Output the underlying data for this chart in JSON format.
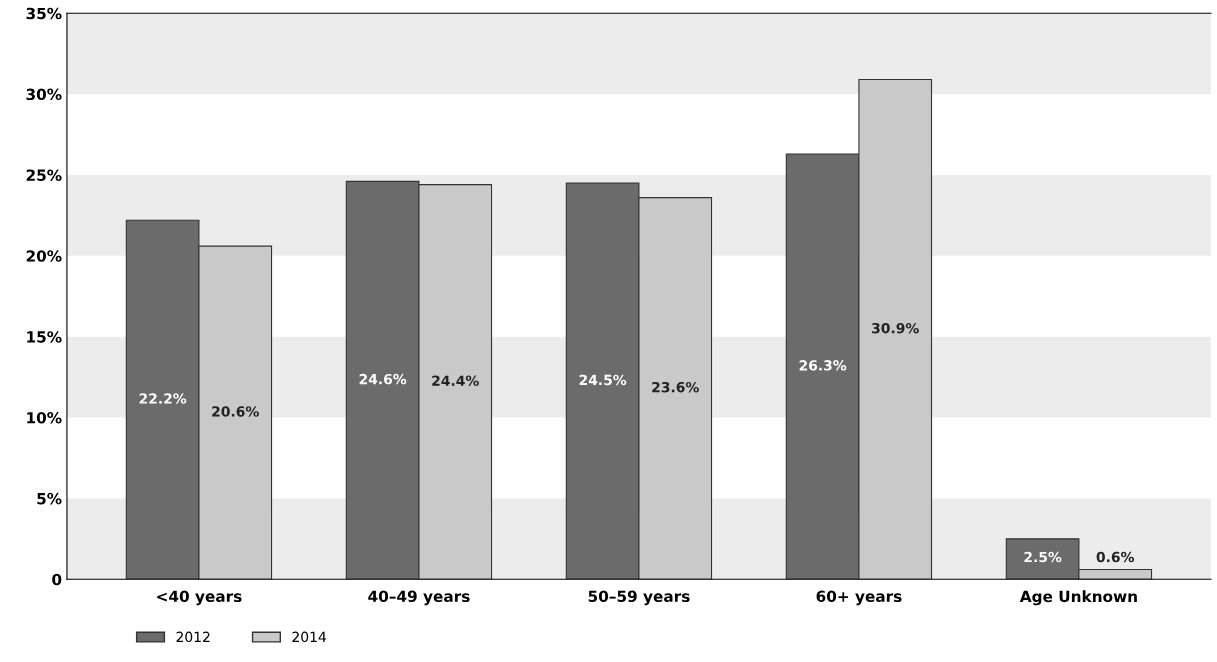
{
  "chart_data": {
    "type": "bar",
    "categories": [
      "<40 years",
      "40–49 years",
      "50–59 years",
      "60+ years",
      "Age Unknown"
    ],
    "series": [
      {
        "name": "2012",
        "color": "#6b6b6b",
        "values": [
          22.2,
          24.6,
          24.5,
          26.3,
          2.5
        ]
      },
      {
        "name": "2014",
        "color": "#c9c9c9",
        "values": [
          20.6,
          24.4,
          23.6,
          30.9,
          0.6
        ]
      }
    ],
    "value_labels": [
      [
        "22.2%",
        "24.6%",
        "24.5%",
        "26.3%",
        "2.5%"
      ],
      [
        "20.6%",
        "24.4%",
        "23.6%",
        "30.9%",
        "0.6%"
      ]
    ],
    "ylim": [
      0,
      35
    ],
    "yticks": [
      {
        "value": 0,
        "label": "0"
      },
      {
        "value": 5,
        "label": "5%"
      },
      {
        "value": 10,
        "label": "10%"
      },
      {
        "value": 15,
        "label": "15%"
      },
      {
        "value": 20,
        "label": "20%"
      },
      {
        "value": 25,
        "label": "25%"
      },
      {
        "value": 30,
        "label": "30%"
      },
      {
        "value": 35,
        "label": "35%"
      }
    ],
    "bands": [
      {
        "axis": "y",
        "from": 0,
        "to": 5,
        "color": "#ececec"
      },
      {
        "axis": "y",
        "from": 10,
        "to": 15,
        "color": "#ececec"
      },
      {
        "axis": "y",
        "from": 20,
        "to": 25,
        "color": "#ececec"
      },
      {
        "axis": "y",
        "from": 30,
        "to": 35,
        "color": "#ececec"
      }
    ],
    "grid": false,
    "legend": "bottom left"
  }
}
